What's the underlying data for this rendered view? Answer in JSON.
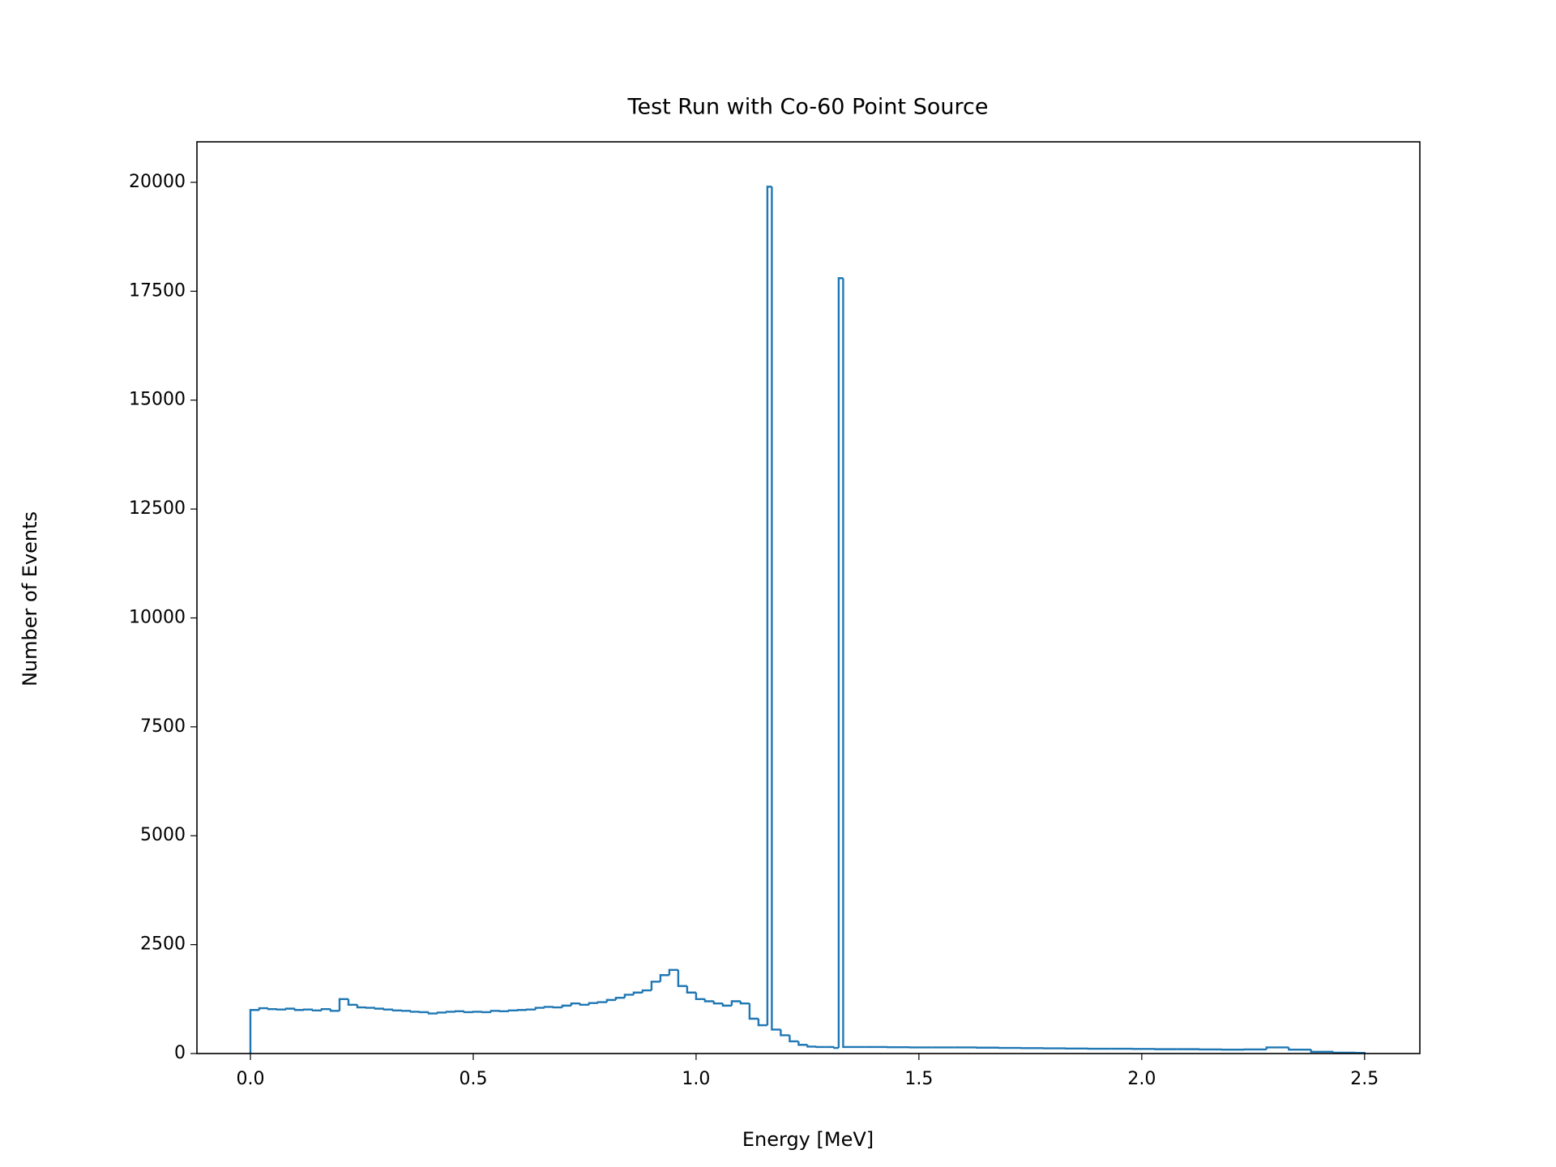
{
  "chart_data": {
    "type": "histogram",
    "title": "Test Run with Co-60 Point Source",
    "x_label": "Energy [MeV]",
    "y_label": "Number of Events",
    "bins": [
      0,
      0.02,
      0.04,
      0.06,
      0.08,
      0.1,
      0.12,
      0.14,
      0.16,
      0.18,
      0.2,
      0.22,
      0.24,
      0.26,
      0.28,
      0.3,
      0.32,
      0.34,
      0.36,
      0.38,
      0.4,
      0.42,
      0.44,
      0.46,
      0.48,
      0.5,
      0.52,
      0.54,
      0.56,
      0.58,
      0.6,
      0.62,
      0.64,
      0.66,
      0.68,
      0.7,
      0.72,
      0.74,
      0.76,
      0.78,
      0.8,
      0.82,
      0.84,
      0.86,
      0.88,
      0.9,
      0.92,
      0.94,
      0.96,
      0.98,
      1.0,
      1.02,
      1.04,
      1.06,
      1.08,
      1.1,
      1.12,
      1.14,
      1.16,
      1.17,
      1.19,
      1.21,
      1.23,
      1.25,
      1.27,
      1.29,
      1.31,
      1.32,
      1.33,
      1.38,
      1.43,
      1.48,
      1.53,
      1.58,
      1.63,
      1.68,
      1.73,
      1.78,
      1.83,
      1.88,
      1.93,
      1.98,
      2.03,
      2.08,
      2.13,
      2.18,
      2.23,
      2.28,
      2.33,
      2.38,
      2.43,
      2.48,
      2.5
    ],
    "values": [
      1000,
      1040,
      1020,
      1010,
      1030,
      1000,
      1010,
      990,
      1020,
      980,
      1250,
      1120,
      1060,
      1050,
      1030,
      1010,
      990,
      980,
      960,
      950,
      920,
      940,
      960,
      970,
      950,
      960,
      950,
      980,
      970,
      990,
      1000,
      1010,
      1050,
      1070,
      1060,
      1100,
      1150,
      1120,
      1160,
      1180,
      1230,
      1280,
      1350,
      1400,
      1450,
      1650,
      1800,
      1920,
      1550,
      1400,
      1250,
      1200,
      1150,
      1100,
      1200,
      1150,
      800,
      650,
      19900,
      550,
      420,
      280,
      200,
      160,
      150,
      150,
      130,
      17800,
      150,
      150,
      145,
      140,
      140,
      140,
      135,
      130,
      125,
      120,
      115,
      110,
      110,
      105,
      100,
      100,
      95,
      90,
      95,
      140,
      90,
      40,
      20,
      15
    ],
    "color": "#1f77b4",
    "xlim": [
      -0.12,
      2.624
    ],
    "ylim": [
      0,
      20930
    ],
    "xticks": [
      {
        "value": 0,
        "label": "0.0"
      },
      0.5,
      {
        "value": 1,
        "label": "1.0"
      },
      1.5,
      {
        "value": 2,
        "label": "2.0"
      },
      2.5
    ],
    "yticks": [
      0,
      2500,
      5000,
      7500,
      10000,
      12500,
      15000,
      17500,
      20000
    ],
    "grid": false
  }
}
